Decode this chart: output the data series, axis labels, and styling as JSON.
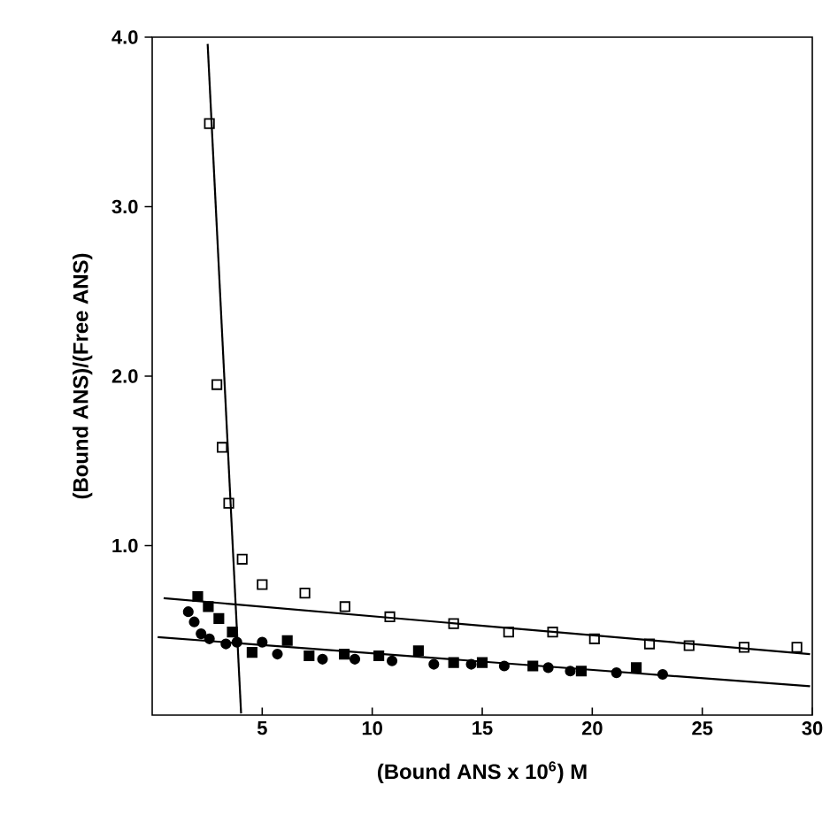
{
  "chart_data": {
    "type": "scatter",
    "xlabel": "(Bound ANS x 10$^{6}$) M",
    "ylabel": "(Bound ANS)/(Free ANS)",
    "xlim": [
      0,
      30
    ],
    "ylim": [
      0,
      4
    ],
    "xticks": [
      5,
      10,
      15,
      20,
      25,
      30
    ],
    "yticks": [
      {
        "value": 1,
        "label": "1.0"
      },
      {
        "value": 2,
        "label": "2.0"
      },
      {
        "value": 3,
        "label": "3.0"
      },
      {
        "value": 4,
        "label": "4.0"
      }
    ],
    "grid": false,
    "series": [
      {
        "marker": "square",
        "color": "#000000",
        "x": [
          2.6,
          2.94,
          3.18,
          3.48,
          4.09,
          5.0,
          6.94,
          8.76,
          10.8,
          13.7,
          16.2,
          18.2,
          20.1,
          22.6,
          24.4,
          26.9,
          29.3
        ],
        "values": [
          3.49,
          1.95,
          1.58,
          1.25,
          0.92,
          0.77,
          0.72,
          0.64,
          0.58,
          0.54,
          0.49,
          0.49,
          0.45,
          0.42,
          0.41,
          0.4,
          0.4
        ]
      },
      {
        "marker": "square",
        "color": "#000000",
        "x": [
          2.07,
          2.55,
          3.03,
          3.64,
          4.54,
          6.14,
          7.13,
          8.73,
          10.3,
          12.1,
          13.7,
          15.0,
          17.3,
          19.5,
          22.0
        ],
        "values": [
          0.7,
          0.64,
          0.57,
          0.49,
          0.37,
          0.44,
          0.35,
          0.36,
          0.35,
          0.38,
          0.31,
          0.31,
          0.29,
          0.26,
          0.28
        ]
      },
      {
        "marker": "circle",
        "color": "#000000",
        "x": [
          1.64,
          1.91,
          2.22,
          2.6,
          3.35,
          3.85,
          5.0,
          5.69,
          7.74,
          9.21,
          10.9,
          12.8,
          14.5,
          16.0,
          18.0,
          19.0,
          21.1,
          23.2
        ],
        "values": [
          0.61,
          0.55,
          0.48,
          0.45,
          0.42,
          0.43,
          0.43,
          0.36,
          0.33,
          0.33,
          0.32,
          0.3,
          0.3,
          0.29,
          0.28,
          0.26,
          0.25,
          0.24
        ]
      },
      {
        "type": "line",
        "marker": "none",
        "color": "#000000",
        "x": [
          2.52,
          4.04
        ],
        "values": [
          3.96,
          0.01
        ]
      },
      {
        "type": "line",
        "marker": "none",
        "color": "#000000",
        "x": [
          0.52,
          29.9
        ],
        "values": [
          0.69,
          0.36
        ]
      },
      {
        "type": "line",
        "marker": "none",
        "color": "#000000",
        "x": [
          0.25,
          29.9
        ],
        "values": [
          0.46,
          0.17
        ]
      }
    ]
  }
}
